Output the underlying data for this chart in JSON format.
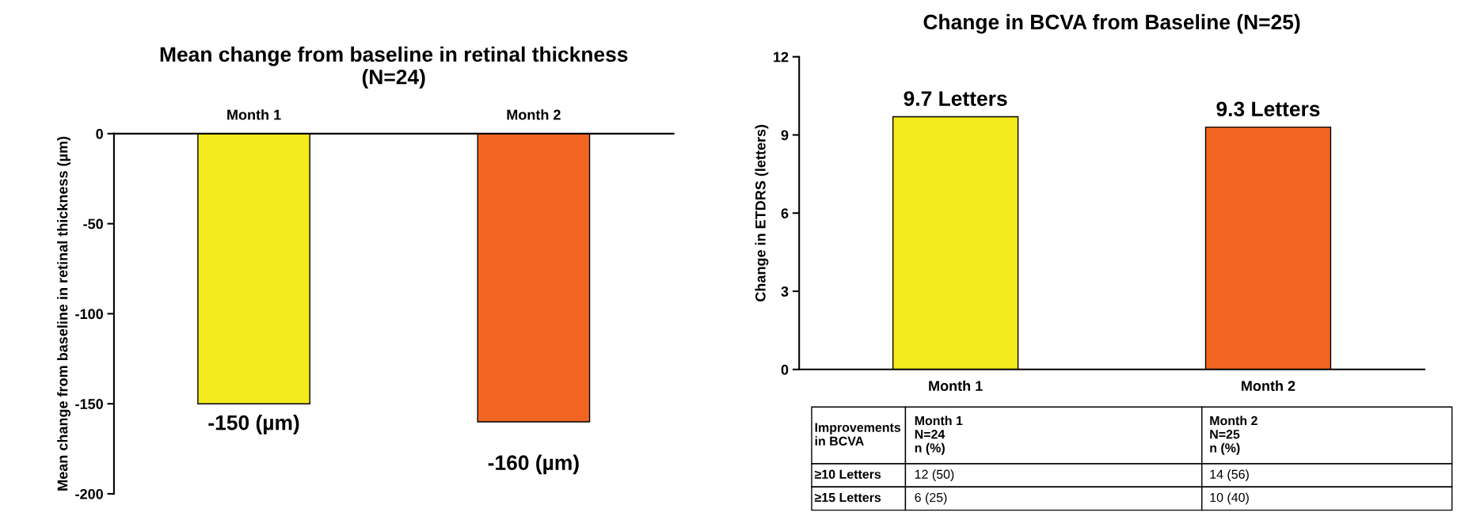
{
  "chart_data": [
    {
      "type": "bar",
      "title": "Mean change from baseline in retinal thickness (N=24)",
      "ylabel": "Mean change from baseline in retinal thickness (µm)",
      "categories": [
        "Month 1",
        "Month 2"
      ],
      "values": [
        -150,
        -160
      ],
      "colors": [
        "#f2ea1c",
        "#f26522"
      ],
      "value_labels": [
        "-150 (µm)",
        "-160 (µm)"
      ],
      "ylim": [
        -200,
        0
      ],
      "yticks": [
        -200,
        -150,
        -100,
        -50,
        0
      ],
      "grid": false,
      "legend": false
    },
    {
      "type": "bar",
      "title": "Change in BCVA from Baseline (N=25)",
      "ylabel": "Change in ETDRS (letters)",
      "categories": [
        "Month 1",
        "Month 2"
      ],
      "values": [
        9.7,
        9.3
      ],
      "colors": [
        "#f2ea1c",
        "#f26522"
      ],
      "value_labels": [
        "9.7 Letters",
        "9.3 Letters"
      ],
      "ylim": [
        0,
        12
      ],
      "yticks": [
        0,
        3,
        6,
        9,
        12
      ],
      "grid": false,
      "legend": false,
      "annotations": [
        "Improvements\nin BCVA",
        "Month 1\nN=24\nn (%)",
        "Month 2\nN=25\nn (%)",
        "≥10 Letters",
        "12 (50)",
        "14 (56)",
        "≥15 Letters",
        "6 (25)",
        "10 (40)"
      ]
    }
  ]
}
